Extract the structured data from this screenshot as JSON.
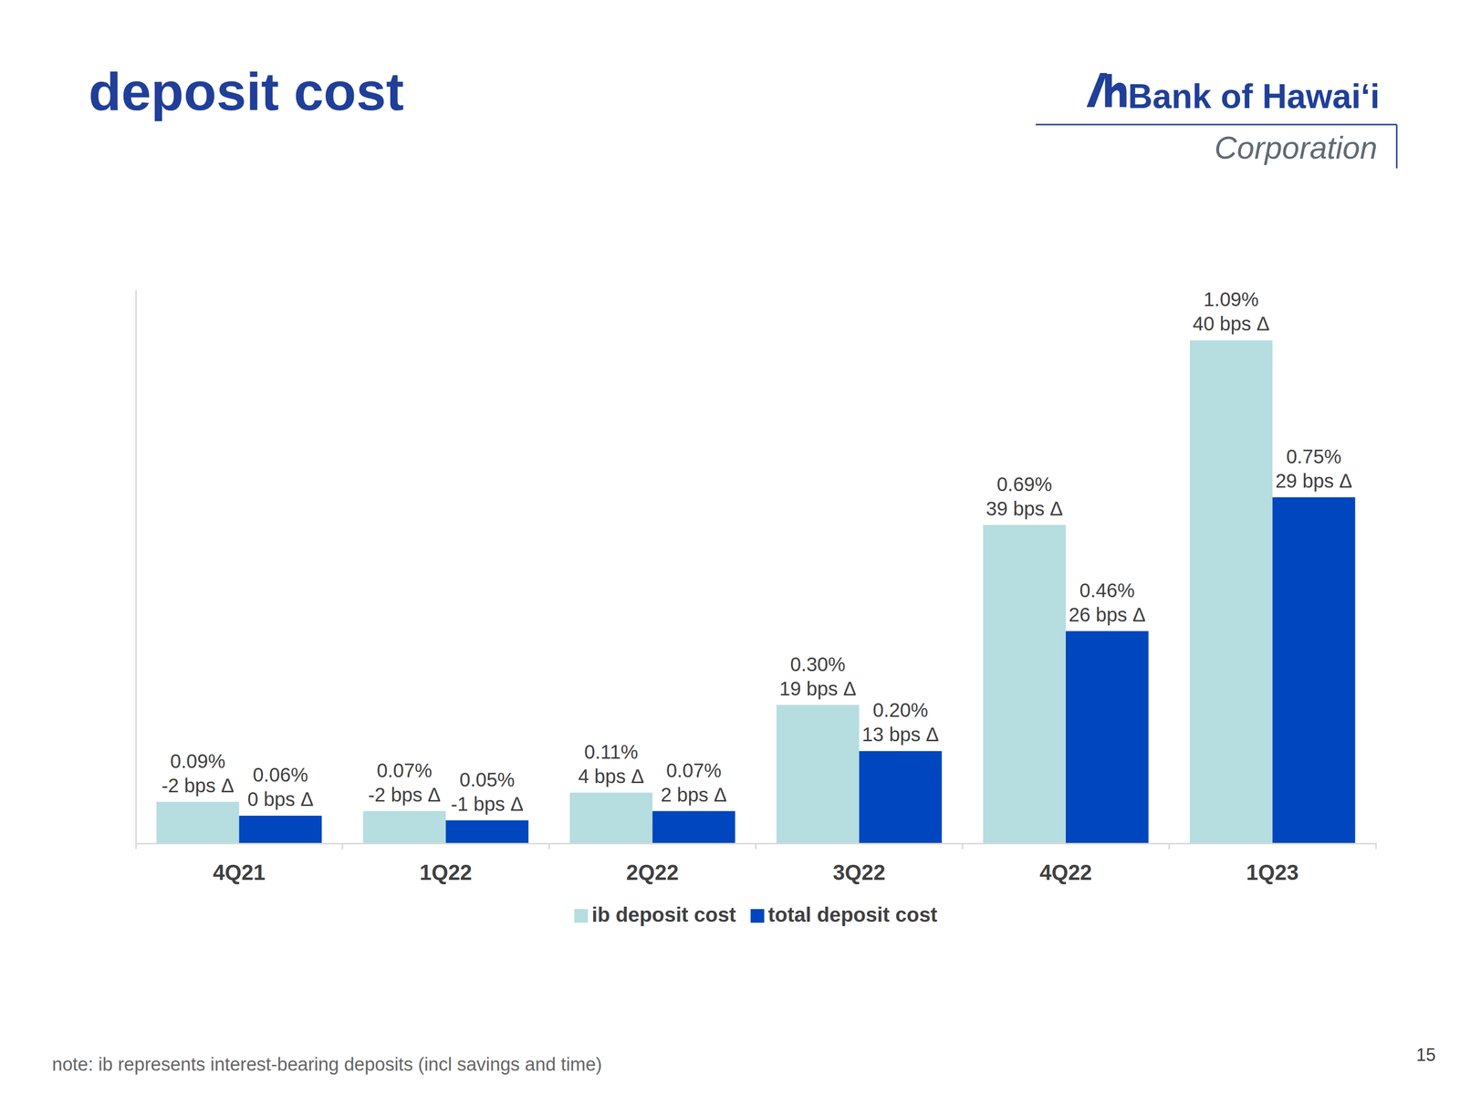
{
  "chart_data": {
    "type": "bar",
    "title": "deposit cost",
    "categories": [
      "4Q21",
      "1Q22",
      "2Q22",
      "3Q22",
      "4Q22",
      "1Q23"
    ],
    "series": [
      {
        "name": "ib deposit cost",
        "color": "#b6dde0",
        "values": [
          0.09,
          0.07,
          0.11,
          0.3,
          0.69,
          1.09
        ],
        "value_labels": [
          "0.09%",
          "0.07%",
          "0.11%",
          "0.30%",
          "0.69%",
          "1.09%"
        ],
        "delta_labels": [
          "-2 bps Δ",
          "-2 bps Δ",
          "4 bps Δ",
          "19 bps Δ",
          "39 bps Δ",
          "40 bps Δ"
        ]
      },
      {
        "name": "total deposit cost",
        "color": "#0046be",
        "values": [
          0.06,
          0.05,
          0.07,
          0.2,
          0.46,
          0.75
        ],
        "value_labels": [
          "0.06%",
          "0.05%",
          "0.07%",
          "0.20%",
          "0.46%",
          "0.75%"
        ],
        "delta_labels": [
          "0 bps Δ",
          "-1 bps Δ",
          "2 bps Δ",
          "13 bps Δ",
          "26 bps Δ",
          "29 bps Δ"
        ]
      }
    ],
    "ylim": [
      0,
      1.2
    ],
    "yticks": [],
    "grid": false,
    "legend": "bottom",
    "data_labels": true,
    "tick_labels": "x"
  },
  "page": {
    "logo_name": "Bank of Hawaiʻi",
    "logo_subtitle": "Corporation",
    "note": "note: ib represents interest-bearing deposits (incl savings and time)",
    "page_number": "15"
  }
}
